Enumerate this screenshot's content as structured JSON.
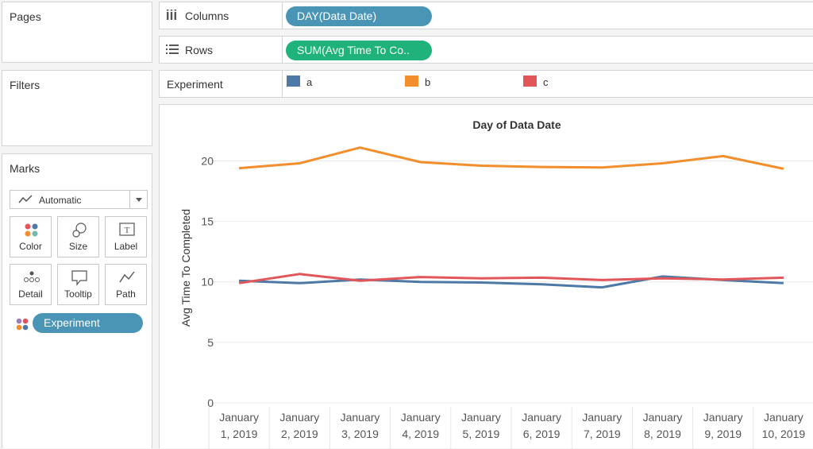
{
  "sidebar": {
    "pages_title": "Pages",
    "filters_title": "Filters",
    "marks_title": "Marks",
    "mark_type": "Automatic",
    "mark_cards": [
      {
        "label": "Color",
        "icon": "color-dots-icon"
      },
      {
        "label": "Size",
        "icon": "size-circles-icon"
      },
      {
        "label": "Label",
        "icon": "text-label-icon"
      },
      {
        "label": "Detail",
        "icon": "detail-dots-icon"
      },
      {
        "label": "Tooltip",
        "icon": "tooltip-bubble-icon"
      },
      {
        "label": "Path",
        "icon": "path-line-icon"
      }
    ],
    "color_pill": "Experiment"
  },
  "shelves": {
    "columns_label": "Columns",
    "columns_pill": "DAY(Data Date)",
    "rows_label": "Rows",
    "rows_pill": "SUM(Avg Time To Co..",
    "legend_label": "Experiment"
  },
  "legend": [
    {
      "name": "a",
      "color": "#4e79a7"
    },
    {
      "name": "b",
      "color": "#f28e2b"
    },
    {
      "name": "c",
      "color": "#e15759"
    }
  ],
  "chart_data": {
    "type": "line",
    "title": "Day of Data Date",
    "ylabel": "Avg Time To Completed",
    "xlabel": "",
    "ylim": [
      0,
      22
    ],
    "yticks": [
      0,
      5,
      10,
      15,
      20
    ],
    "grid": true,
    "categories": [
      [
        "January",
        "1, 2019"
      ],
      [
        "January",
        "2, 2019"
      ],
      [
        "January",
        "3, 2019"
      ],
      [
        "January",
        "4, 2019"
      ],
      [
        "January",
        "5, 2019"
      ],
      [
        "January",
        "6, 2019"
      ],
      [
        "January",
        "7, 2019"
      ],
      [
        "January",
        "8, 2019"
      ],
      [
        "January",
        "9, 2019"
      ],
      [
        "January",
        "10, 2019"
      ]
    ],
    "series": [
      {
        "name": "a",
        "color": "#4e79a7",
        "values": [
          10.1,
          9.9,
          10.2,
          10.0,
          9.95,
          9.8,
          9.55,
          10.45,
          10.15,
          9.9
        ]
      },
      {
        "name": "b",
        "color": "#f28e2b",
        "values": [
          19.4,
          19.8,
          21.1,
          19.9,
          19.6,
          19.5,
          19.45,
          19.8,
          20.4,
          19.35
        ]
      },
      {
        "name": "c",
        "color": "#e15759",
        "values": [
          9.9,
          10.65,
          10.1,
          10.4,
          10.3,
          10.35,
          10.15,
          10.3,
          10.2,
          10.35
        ]
      }
    ]
  }
}
